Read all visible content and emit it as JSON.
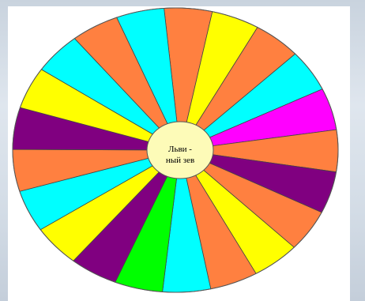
{
  "center": {
    "line1": "Льви -",
    "line2": "ный зев",
    "color": "#fdfbb8"
  },
  "palette": {
    "orange": "#ff8040",
    "yellow": "#ffff00",
    "cyan": "#00ffff",
    "purple": "#800080",
    "magenta": "#ff00ff",
    "green": "#00ff00"
  },
  "sectors": [
    {
      "color": "orange"
    },
    {
      "color": "yellow"
    },
    {
      "color": "orange"
    },
    {
      "color": "cyan"
    },
    {
      "color": "magenta"
    },
    {
      "color": "orange"
    },
    {
      "color": "purple"
    },
    {
      "color": "orange"
    },
    {
      "color": "yellow"
    },
    {
      "color": "orange"
    },
    {
      "color": "cyan"
    },
    {
      "color": "green"
    },
    {
      "color": "purple"
    },
    {
      "color": "yellow"
    },
    {
      "color": "cyan"
    },
    {
      "color": "orange"
    },
    {
      "color": "purple"
    },
    {
      "color": "yellow"
    },
    {
      "color": "cyan"
    },
    {
      "color": "orange"
    },
    {
      "color": "cyan"
    }
  ]
}
